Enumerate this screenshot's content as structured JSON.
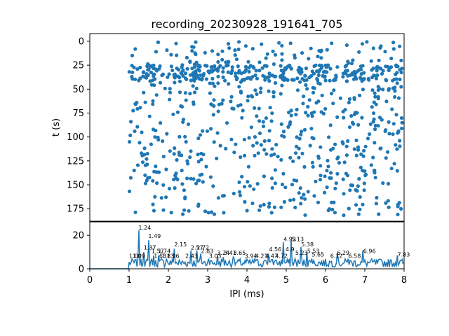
{
  "title": "recording_20230928_191641_705",
  "colors": {
    "series": "#1f77b4",
    "axes": "#000000",
    "background": "#ffffff"
  },
  "chart_data": [
    {
      "type": "scatter",
      "ylabel": "t (s)",
      "yticks": [
        "0",
        "25",
        "50",
        "75",
        "100",
        "125",
        "150",
        "175"
      ],
      "ytick_values": [
        0,
        25,
        50,
        75,
        100,
        125,
        150,
        175
      ],
      "ylim": [
        188,
        -8
      ],
      "xlim": [
        0,
        8
      ],
      "yinverted": true,
      "x_band": [
        1.0,
        7.95
      ],
      "y_band_dense": [
        25,
        42
      ],
      "note_points": "approximately 900 spike-time markers between IPI 1.0 and 8.0 ms"
    },
    {
      "type": "line",
      "xlabel": "IPI (ms)",
      "xticks": [
        "0",
        "1",
        "2",
        "3",
        "4",
        "5",
        "6",
        "7",
        "8"
      ],
      "xtick_values": [
        0,
        1,
        2,
        3,
        4,
        5,
        6,
        7,
        8
      ],
      "yticks": [
        "0",
        "20"
      ],
      "ytick_values": [
        0,
        20
      ],
      "xlim": [
        0,
        8
      ],
      "ylim": [
        0,
        28
      ],
      "peaks": [
        {
          "x": 1.0,
          "y": 4
        },
        {
          "x": 1.09,
          "y": 5
        },
        {
          "x": 1.24,
          "y": 23
        },
        {
          "x": 1.37,
          "y": 10
        },
        {
          "x": 1.49,
          "y": 17
        },
        {
          "x": 1.57,
          "y": 6
        },
        {
          "x": 1.63,
          "y": 8
        },
        {
          "x": 1.74,
          "y": 8
        },
        {
          "x": 1.83,
          "y": 6
        },
        {
          "x": 1.96,
          "y": 6
        },
        {
          "x": 2.15,
          "y": 12
        },
        {
          "x": 2.43,
          "y": 4
        },
        {
          "x": 2.57,
          "y": 11
        },
        {
          "x": 2.72,
          "y": 11
        },
        {
          "x": 2.83,
          "y": 9
        },
        {
          "x": 3.03,
          "y": 6
        },
        {
          "x": 3.24,
          "y": 8
        },
        {
          "x": 3.41,
          "y": 7
        },
        {
          "x": 3.65,
          "y": 7
        },
        {
          "x": 3.94,
          "y": 5
        },
        {
          "x": 4.21,
          "y": 6
        },
        {
          "x": 4.47,
          "y": 5
        },
        {
          "x": 4.56,
          "y": 9
        },
        {
          "x": 4.72,
          "y": 5
        },
        {
          "x": 4.93,
          "y": 16
        },
        {
          "x": 5.13,
          "y": 17
        },
        {
          "x": 5.23,
          "y": 6
        },
        {
          "x": 5.38,
          "y": 13
        },
        {
          "x": 5.53,
          "y": 10
        },
        {
          "x": 5.65,
          "y": 6
        },
        {
          "x": 6.12,
          "y": 4
        },
        {
          "x": 6.29,
          "y": 9
        },
        {
          "x": 6.58,
          "y": 6
        },
        {
          "x": 6.96,
          "y": 11
        },
        {
          "x": 7.83,
          "y": 8
        }
      ],
      "annotations": [
        {
          "text": "1.24",
          "x": 1.24,
          "y": 23
        },
        {
          "text": "1.49",
          "x": 1.49,
          "y": 18
        },
        {
          "text": "1.37",
          "x": 1.37,
          "y": 11
        },
        {
          "text": "1.57",
          "x": 1.57,
          "y": 9
        },
        {
          "text": "1.74",
          "x": 1.74,
          "y": 9
        },
        {
          "text": "2.15",
          "x": 2.15,
          "y": 13
        },
        {
          "text": "2.57",
          "x": 2.57,
          "y": 11
        },
        {
          "text": "2.72",
          "x": 2.72,
          "y": 11
        },
        {
          "text": "2.83",
          "x": 2.83,
          "y": 9
        },
        {
          "text": "1.00",
          "x": 1.0,
          "y": 6
        },
        {
          "text": "1.09",
          "x": 1.09,
          "y": 6
        },
        {
          "text": "1.63",
          "x": 1.63,
          "y": 6
        },
        {
          "text": "1.83",
          "x": 1.83,
          "y": 6
        },
        {
          "text": "1.96",
          "x": 1.96,
          "y": 6
        },
        {
          "text": "2.43",
          "x": 2.43,
          "y": 6
        },
        {
          "text": "3.03",
          "x": 3.03,
          "y": 6
        },
        {
          "text": "3.24",
          "x": 3.24,
          "y": 8
        },
        {
          "text": "3.41",
          "x": 3.41,
          "y": 8
        },
        {
          "text": "3.65",
          "x": 3.65,
          "y": 8
        },
        {
          "text": "3.94",
          "x": 3.94,
          "y": 6
        },
        {
          "text": "4.21",
          "x": 4.21,
          "y": 6
        },
        {
          "text": "4.47",
          "x": 4.47,
          "y": 6
        },
        {
          "text": "4.56",
          "x": 4.56,
          "y": 10
        },
        {
          "text": "4.72",
          "x": 4.72,
          "y": 6
        },
        {
          "text": "4.93",
          "x": 4.93,
          "y": 16
        },
        {
          "text": "5.13",
          "x": 5.13,
          "y": 16
        },
        {
          "text": "4.9",
          "x": 4.98,
          "y": 10
        },
        {
          "text": "5.38",
          "x": 5.38,
          "y": 13
        },
        {
          "text": "5.23",
          "x": 5.23,
          "y": 8
        },
        {
          "text": "5.53",
          "x": 5.53,
          "y": 9
        },
        {
          "text": "5.65",
          "x": 5.65,
          "y": 7
        },
        {
          "text": "6.12",
          "x": 6.12,
          "y": 6
        },
        {
          "text": "6.29",
          "x": 6.29,
          "y": 8
        },
        {
          "text": "6.58",
          "x": 6.58,
          "y": 6
        },
        {
          "text": "6.96",
          "x": 6.96,
          "y": 9
        },
        {
          "text": "7.83",
          "x": 7.83,
          "y": 7
        }
      ]
    }
  ]
}
